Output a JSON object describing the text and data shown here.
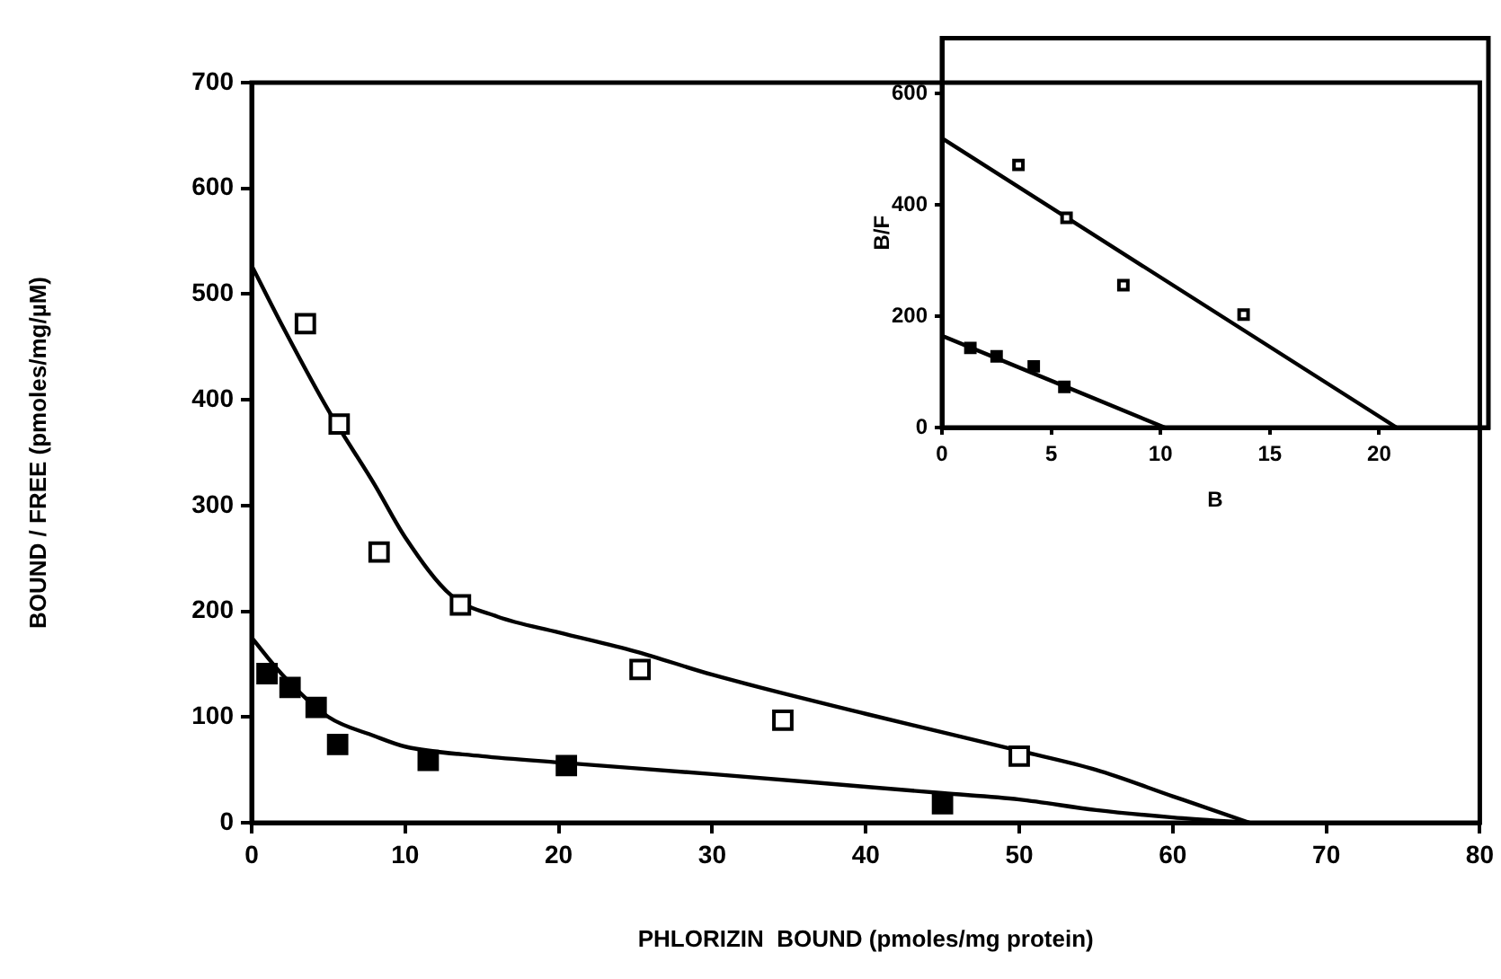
{
  "chart_data": [
    {
      "type": "scatter",
      "xlabel": "PHLORIZIN  BOUND (pmoles/mg protein)",
      "ylabel": "BOUND / FREE (pmoles/mg/µM)",
      "xlim": [
        0,
        80
      ],
      "ylim": [
        0,
        700
      ],
      "xticks": [
        0,
        10,
        20,
        30,
        40,
        50,
        60,
        70,
        80
      ],
      "yticks": [
        0,
        100,
        200,
        300,
        400,
        500,
        600,
        700
      ],
      "grid": false,
      "legend": false,
      "marker": "square",
      "series": [
        {
          "color": "#ffffff",
          "x": [
            3.5,
            5.7,
            8.3,
            13.6,
            25.3,
            34.6,
            50
          ],
          "values": [
            472,
            377,
            256,
            206,
            145,
            97,
            63
          ]
        },
        {
          "color": "#000000",
          "x": [
            1,
            2.5,
            4.2,
            5.6,
            11.5,
            20.5,
            45
          ],
          "values": [
            141,
            128,
            109,
            74,
            59,
            54,
            18
          ]
        },
        {
          "type": "line",
          "color": "#000000",
          "marker": "none",
          "x": [
            0,
            2,
            5,
            8,
            10,
            13,
            16,
            20,
            25,
            30,
            40,
            50,
            55,
            60,
            65
          ],
          "values": [
            527,
            470,
            390,
            320,
            270,
            215,
            195,
            180,
            162,
            140,
            103,
            68,
            50,
            25,
            0
          ]
        },
        {
          "type": "line",
          "color": "#000000",
          "marker": "none",
          "x": [
            0,
            2,
            5,
            8,
            10,
            15,
            20,
            30,
            40,
            45,
            50,
            55,
            60,
            65
          ],
          "values": [
            175,
            140,
            100,
            82,
            72,
            63,
            57,
            46,
            34,
            28,
            22,
            12,
            5,
            0
          ]
        }
      ]
    },
    {
      "type": "scatter",
      "xlabel": "B",
      "ylabel": "B/F",
      "xlim": [
        0,
        25
      ],
      "ylim": [
        0,
        700
      ],
      "xticks": [
        0,
        5,
        10,
        15,
        20
      ],
      "yticks": [
        0,
        200,
        400,
        600
      ],
      "grid": false,
      "legend": false,
      "marker": "square",
      "series": [
        {
          "color": "#ffffff",
          "x": [
            3.5,
            5.7,
            8.3,
            13.8
          ],
          "values": [
            472,
            377,
            256,
            203
          ]
        },
        {
          "color": "#000000",
          "x": [
            1.3,
            2.5,
            4.2,
            5.6
          ],
          "values": [
            143,
            128,
            110,
            73
          ]
        },
        {
          "type": "line",
          "color": "#000000",
          "marker": "none",
          "x": [
            0,
            20.8
          ],
          "values": [
            520,
            0
          ]
        },
        {
          "type": "line",
          "color": "#000000",
          "marker": "none",
          "x": [
            0,
            10.2
          ],
          "values": [
            165,
            0
          ]
        }
      ]
    }
  ]
}
